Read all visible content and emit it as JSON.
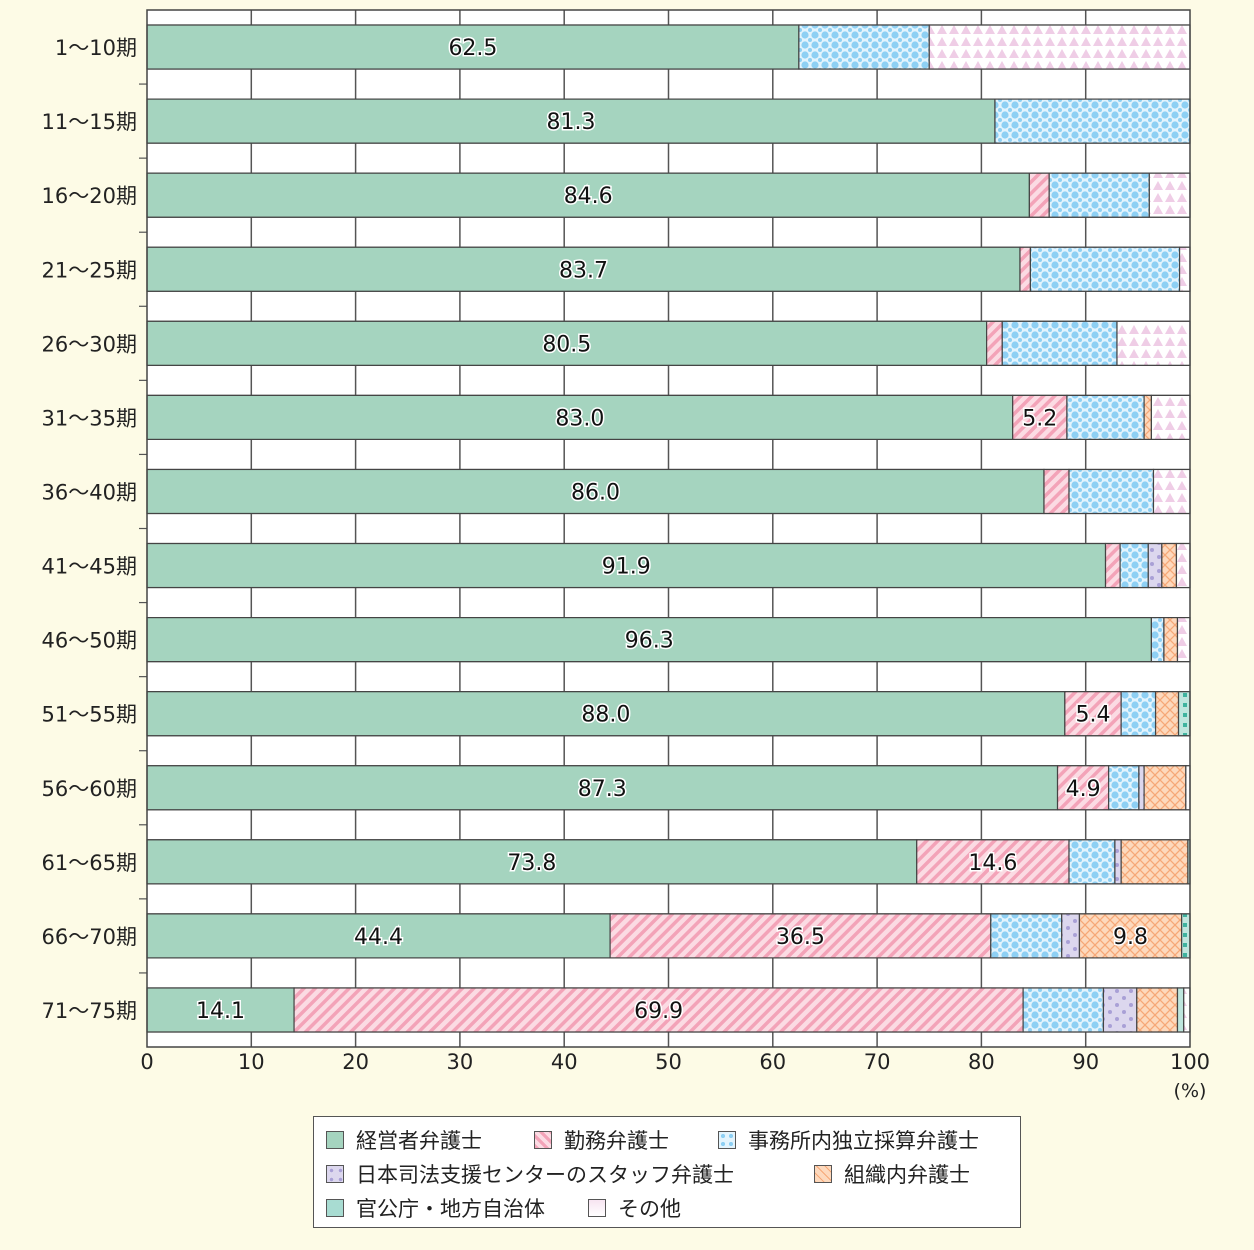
{
  "chart_data": {
    "type": "bar",
    "orientation": "horizontal",
    "stacked": true,
    "categories": [
      "1～10期",
      "11～15期",
      "16～20期",
      "21～25期",
      "26～30期",
      "31～35期",
      "36～40期",
      "41～45期",
      "46～50期",
      "51～55期",
      "56～60期",
      "61～65期",
      "66～70期",
      "71～75期"
    ],
    "series": [
      {
        "name": "経営者弁護士",
        "color": "#a5d4bf",
        "values": [
          62.5,
          81.3,
          84.6,
          83.7,
          80.5,
          83.0,
          86.0,
          91.9,
          96.3,
          88.0,
          87.3,
          73.8,
          44.4,
          14.1
        ]
      },
      {
        "name": "勤務弁護士",
        "color": "#f6b9c9",
        "values": [
          0,
          0,
          1.9,
          1.0,
          1.5,
          5.2,
          2.4,
          1.4,
          0,
          5.4,
          4.9,
          14.6,
          36.5,
          69.9
        ]
      },
      {
        "name": "事務所内独立採算弁護士",
        "color": "#bfe4f8",
        "values": [
          12.5,
          18.7,
          9.6,
          14.3,
          11.0,
          7.4,
          8.1,
          2.7,
          1.2,
          3.3,
          2.9,
          4.4,
          6.8,
          7.7
        ]
      },
      {
        "name": "日本司法支援センターのスタッフ弁護士",
        "color": "#d9d4ec",
        "values": [
          0,
          0,
          0,
          0,
          0,
          0,
          0,
          1.3,
          0,
          0,
          0.5,
          0.6,
          1.7,
          3.2
        ]
      },
      {
        "name": "組織内弁護士",
        "color": "#fdd2b2",
        "values": [
          0,
          0,
          0,
          0,
          0,
          0.7,
          0,
          1.4,
          1.3,
          2.2,
          4.0,
          6.4,
          9.8,
          3.9
        ]
      },
      {
        "name": "官公庁・地方自治体",
        "color": "#a8dcd2",
        "values": [
          0,
          0,
          0,
          0,
          0,
          0,
          0,
          0,
          0,
          1.1,
          0,
          0.2,
          0.8,
          0.6
        ]
      },
      {
        "name": "その他",
        "color": "#f7e4f1",
        "values": [
          25.0,
          0,
          3.9,
          1.0,
          7.0,
          3.7,
          3.5,
          1.3,
          1.2,
          0,
          0.4,
          0,
          0,
          0.6
        ]
      }
    ],
    "data_labels": [
      {
        "row": 0,
        "series": 0,
        "text": "62.5"
      },
      {
        "row": 1,
        "series": 0,
        "text": "81.3"
      },
      {
        "row": 2,
        "series": 0,
        "text": "84.6"
      },
      {
        "row": 3,
        "series": 0,
        "text": "83.7"
      },
      {
        "row": 4,
        "series": 0,
        "text": "80.5"
      },
      {
        "row": 5,
        "series": 0,
        "text": "83.0"
      },
      {
        "row": 5,
        "series": 1,
        "text": "5.2"
      },
      {
        "row": 6,
        "series": 0,
        "text": "86.0"
      },
      {
        "row": 7,
        "series": 0,
        "text": "91.9"
      },
      {
        "row": 8,
        "series": 0,
        "text": "96.3"
      },
      {
        "row": 9,
        "series": 0,
        "text": "88.0"
      },
      {
        "row": 9,
        "series": 1,
        "text": "5.4"
      },
      {
        "row": 10,
        "series": 0,
        "text": "87.3"
      },
      {
        "row": 10,
        "series": 1,
        "text": "4.9"
      },
      {
        "row": 11,
        "series": 0,
        "text": "73.8"
      },
      {
        "row": 11,
        "series": 1,
        "text": "14.6"
      },
      {
        "row": 12,
        "series": 0,
        "text": "44.4"
      },
      {
        "row": 12,
        "series": 1,
        "text": "36.5"
      },
      {
        "row": 12,
        "series": 4,
        "text": "9.8"
      },
      {
        "row": 13,
        "series": 0,
        "text": "14.1"
      },
      {
        "row": 13,
        "series": 1,
        "text": "69.9"
      }
    ],
    "x_ticks": [
      "0",
      "10",
      "20",
      "30",
      "40",
      "50",
      "60",
      "70",
      "80",
      "90",
      "100"
    ],
    "xlim": [
      0,
      100
    ],
    "xunit": "(%)",
    "grid": true,
    "legend_position": "bottom"
  }
}
